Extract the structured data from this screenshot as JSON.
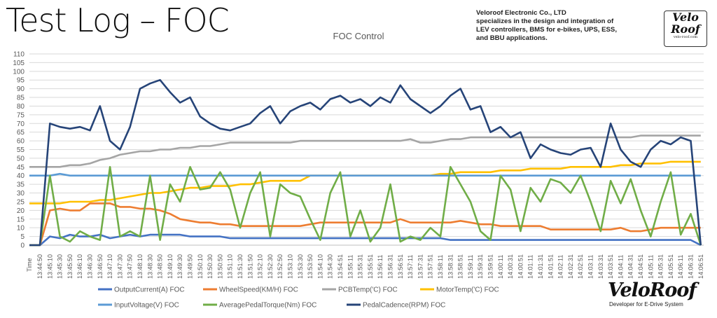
{
  "page_title": "Test Log – FOC",
  "company": {
    "lines": [
      "Veloroof Electronic Co., LTD",
      "specializes in the design and integration of",
      "LEV controllers, BMS for e-bikes, UPS, ESS,",
      "and BBU applications."
    ],
    "logo_top": [
      "Velo",
      "Roof",
      "velo-roof.com"
    ],
    "logo_bottom": "VeloRoof",
    "logo_bottom_tagline": "Developer for E-Drive System"
  },
  "chart_data": {
    "type": "line",
    "title": "FOC Control",
    "xlabel": "Time",
    "ylabel": "",
    "ylim": [
      0,
      110
    ],
    "yticks": [
      0,
      5,
      10,
      15,
      20,
      25,
      30,
      35,
      40,
      45,
      50,
      55,
      60,
      65,
      70,
      75,
      80,
      85,
      90,
      95,
      100,
      105,
      110
    ],
    "grid": true,
    "legend_position": "bottom",
    "x": [
      "13:44:50",
      "13:45:10",
      "13:45:30",
      "13:45:50",
      "13:46:10",
      "13:46:30",
      "13:46:50",
      "13:47:10",
      "13:47:30",
      "13:47:50",
      "13:48:10",
      "13:48:30",
      "13:48:50",
      "13:49:10",
      "13:49:30",
      "13:49:50",
      "13:50:10",
      "13:50:30",
      "13:50:50",
      "13:51:10",
      "13:51:30",
      "13:51:50",
      "13:52:10",
      "13:52:30",
      "13:52:50",
      "13:53:10",
      "13:53:30",
      "13:53:50",
      "13:54:10",
      "13:54:30",
      "13:54:51",
      "13:55:11",
      "13:55:31",
      "13:55:51",
      "13:56:11",
      "13:56:31",
      "13:56:51",
      "13:57:11",
      "13:57:31",
      "13:57:51",
      "13:58:11",
      "13:58:31",
      "13:58:51",
      "13:59:11",
      "13:59:31",
      "13:59:51",
      "14:00:11",
      "14:00:31",
      "14:00:51",
      "14:01:11",
      "14:01:31",
      "14:01:51",
      "14:02:11",
      "14:02:31",
      "14:02:51",
      "14:03:11",
      "14:03:31",
      "14:03:51",
      "14:04:11",
      "14:04:31",
      "14:04:51",
      "14:05:11",
      "14:05:31",
      "14:05:51",
      "14:06:11",
      "14:06:31",
      "14:06:51"
    ],
    "series": [
      {
        "name": "OutputCurrent(A) FOC",
        "color": "#4472c4",
        "values": [
          0,
          5,
          4,
          6,
          5,
          5,
          6,
          4,
          5,
          6,
          5,
          6,
          6,
          6,
          6,
          5,
          5,
          5,
          5,
          4,
          4,
          4,
          4,
          4,
          4,
          4,
          4,
          4,
          4,
          4,
          4,
          4,
          4,
          4,
          4,
          4,
          4,
          4,
          4,
          4,
          4,
          3,
          3,
          3,
          3,
          3,
          3,
          3,
          3,
          3,
          3,
          3,
          3,
          3,
          3,
          3,
          3,
          3,
          3,
          3,
          3,
          3,
          3,
          3,
          3,
          3,
          0
        ]
      },
      {
        "name": "WheelSpeed(KM/H) FOC",
        "color": "#ed7d31",
        "values": [
          0,
          20,
          21,
          20,
          20,
          24,
          24,
          24,
          22,
          22,
          21,
          21,
          20,
          18,
          15,
          14,
          13,
          13,
          12,
          12,
          11,
          11,
          11,
          11,
          11,
          11,
          11,
          12,
          13,
          13,
          13,
          13,
          13,
          13,
          13,
          13,
          15,
          13,
          13,
          13,
          13,
          13,
          14,
          13,
          12,
          12,
          11,
          11,
          11,
          11,
          11,
          9,
          9,
          9,
          9,
          9,
          9,
          9,
          10,
          8,
          8,
          9,
          10,
          10,
          10,
          10,
          10
        ]
      },
      {
        "name": "PCBTemp('C) FOC",
        "color": "#a5a5a5",
        "values": [
          45,
          45,
          45,
          46,
          46,
          47,
          49,
          50,
          52,
          53,
          54,
          54,
          55,
          55,
          56,
          56,
          57,
          57,
          58,
          59,
          59,
          59,
          59,
          59,
          59,
          59,
          60,
          60,
          60,
          60,
          60,
          60,
          60,
          60,
          60,
          60,
          60,
          61,
          59,
          59,
          60,
          61,
          61,
          62,
          62,
          62,
          62,
          62,
          62,
          62,
          62,
          62,
          62,
          62,
          62,
          62,
          62,
          62,
          62,
          62,
          63,
          63,
          63,
          63,
          63,
          63,
          63
        ]
      },
      {
        "name": "MotorTemp('C) FOC",
        "color": "#ffc000",
        "values": [
          24,
          24,
          24,
          25,
          25,
          25,
          26,
          26,
          27,
          28,
          29,
          30,
          30,
          31,
          32,
          33,
          33,
          34,
          34,
          34,
          35,
          35,
          36,
          37,
          37,
          37,
          37,
          40,
          40,
          40,
          40,
          40,
          40,
          40,
          40,
          40,
          40,
          40,
          40,
          40,
          41,
          41,
          42,
          42,
          42,
          42,
          43,
          43,
          43,
          44,
          44,
          44,
          44,
          45,
          45,
          45,
          45,
          45,
          46,
          46,
          47,
          47,
          47,
          48,
          48,
          48,
          48
        ]
      },
      {
        "name": "InputVoltage(V) FOC",
        "color": "#5b9bd5",
        "values": [
          40,
          40,
          41,
          40,
          40,
          40,
          40,
          40,
          40,
          40,
          40,
          40,
          40,
          40,
          40,
          40,
          40,
          40,
          40,
          40,
          40,
          40,
          40,
          40,
          40,
          40,
          40,
          40,
          40,
          40,
          40,
          40,
          40,
          40,
          40,
          40,
          40,
          40,
          40,
          40,
          40,
          40,
          40,
          40,
          40,
          40,
          40,
          40,
          40,
          40,
          40,
          40,
          40,
          40,
          40,
          40,
          40,
          40,
          40,
          40,
          40,
          40,
          40,
          40,
          40,
          40,
          40
        ]
      },
      {
        "name": "AveragePedalTorque(Nm)  FOC",
        "color": "#70ad47",
        "values": [
          0,
          40,
          5,
          2,
          8,
          5,
          3,
          45,
          5,
          8,
          5,
          40,
          3,
          35,
          25,
          45,
          32,
          33,
          42,
          32,
          10,
          30,
          42,
          5,
          35,
          30,
          28,
          15,
          3,
          30,
          42,
          5,
          20,
          2,
          10,
          35,
          2,
          5,
          3,
          10,
          5,
          45,
          35,
          25,
          8,
          3,
          40,
          32,
          8,
          33,
          25,
          38,
          36,
          30,
          40,
          25,
          8,
          37,
          24,
          38,
          20,
          5,
          25,
          42,
          6,
          18,
          0
        ]
      },
      {
        "name": "PedalCadence(RPM)  FOC",
        "color": "#264478",
        "values": [
          0,
          70,
          68,
          67,
          68,
          66,
          80,
          60,
          55,
          68,
          90,
          93,
          95,
          88,
          82,
          85,
          74,
          70,
          67,
          66,
          68,
          70,
          76,
          80,
          70,
          77,
          80,
          82,
          78,
          84,
          86,
          82,
          84,
          80,
          85,
          82,
          92,
          84,
          80,
          76,
          80,
          86,
          90,
          78,
          80,
          65,
          68,
          62,
          65,
          50,
          58,
          55,
          53,
          52,
          55,
          56,
          45,
          70,
          55,
          48,
          45,
          55,
          60,
          58,
          62,
          60,
          0
        ]
      }
    ]
  }
}
